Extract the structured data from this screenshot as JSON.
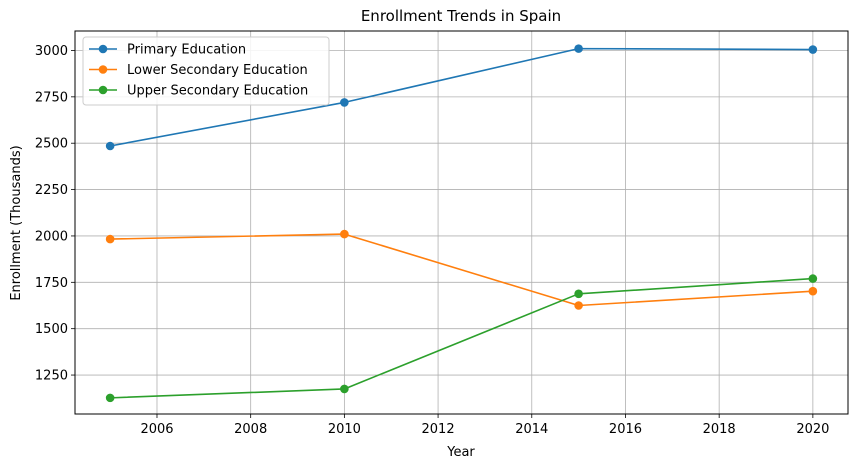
{
  "chart_data": {
    "type": "line",
    "title": "Enrollment Trends in Spain",
    "xlabel": "Year",
    "ylabel": "Enrollment (Thousands)",
    "x": [
      2005,
      2010,
      2015,
      2020
    ],
    "xlim": [
      2004.25,
      2020.75
    ],
    "ylim": [
      1040,
      3105
    ],
    "xticks": [
      2006,
      2008,
      2010,
      2012,
      2014,
      2016,
      2018,
      2020
    ],
    "yticks": [
      1250,
      1500,
      1750,
      2000,
      2250,
      2500,
      2750,
      3000
    ],
    "grid": true,
    "legend_position": "upper-left",
    "series": [
      {
        "name": "Primary Education",
        "color": "#1f77b4",
        "values": [
          2485,
          2720,
          3010,
          3005
        ]
      },
      {
        "name": "Lower Secondary Education",
        "color": "#ff7f0e",
        "values": [
          1983,
          2010,
          1625,
          1702
        ]
      },
      {
        "name": "Upper Secondary Education",
        "color": "#2ca02c",
        "values": [
          1127,
          1175,
          1688,
          1770
        ]
      }
    ]
  }
}
